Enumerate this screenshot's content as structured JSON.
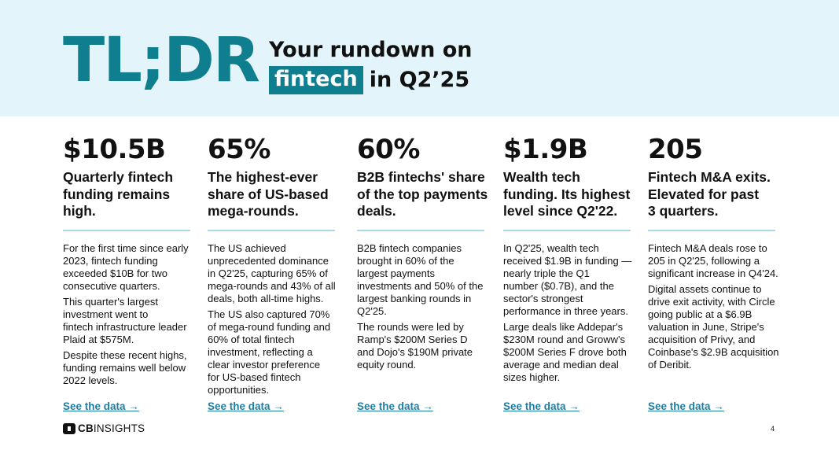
{
  "header": {
    "tldr": "TL;DR",
    "line1": "Your rundown on",
    "highlight": "fintech",
    "line2_rest": "in Q2’25"
  },
  "columns": [
    {
      "stat": "$10.5B",
      "subhead": [
        "Quarterly fintech",
        "funding remains",
        "high."
      ],
      "paragraphs": [
        [
          "For the first time since early",
          "2023, fintech funding",
          "exceeded $10B for two",
          "consecutive quarters."
        ],
        [
          "This quarter's largest",
          "investment went to",
          "fintech infrastructure leader",
          "Plaid at $575M."
        ],
        [
          "Despite these recent highs,",
          "funding remains well below",
          "2022 levels."
        ]
      ],
      "link": "See the data →"
    },
    {
      "stat": "65%",
      "subhead": [
        "The highest-ever",
        "share of US-based",
        "mega-rounds."
      ],
      "paragraphs": [
        [
          "The US achieved",
          "unprecedented dominance",
          "in Q2'25, capturing 65% of",
          "mega-rounds and 43% of all",
          "deals, both all-time highs."
        ],
        [
          "The US also captured 70%",
          "of mega-round funding and",
          "60% of total fintech",
          "investment, reflecting a",
          "clear investor preference",
          "for US-based fintech",
          "opportunities."
        ]
      ],
      "link": "See the data →"
    },
    {
      "stat": "60%",
      "subhead": [
        "B2B fintechs' share",
        "of the top payments",
        "deals."
      ],
      "paragraphs": [
        [
          "B2B fintech companies",
          "brought in 60% of the",
          "largest payments",
          "investments and 50% of the",
          "largest banking rounds in",
          "Q2'25."
        ],
        [
          "The rounds were led by",
          "Ramp's $200M Series D",
          "and Dojo's $190M private",
          "equity round."
        ]
      ],
      "link": "See the data →"
    },
    {
      "stat": "$1.9B",
      "subhead": [
        "Wealth tech",
        "funding. Its highest",
        "level since Q2'22."
      ],
      "paragraphs": [
        [
          "In Q2'25, wealth tech",
          "received $1.9B in funding —",
          "nearly triple the Q1",
          "number ($0.7B), and the",
          "sector's strongest",
          "performance in three years."
        ],
        [
          "Large deals like Addepar's",
          "$230M round and Groww's",
          "$200M Series F drove both",
          "average and median deal",
          "sizes higher."
        ]
      ],
      "link": "See the data →"
    },
    {
      "stat": "205",
      "subhead": [
        "Fintech M&A exits.",
        "Elevated for past",
        "3 quarters."
      ],
      "paragraphs": [
        [
          "Fintech M&A deals rose to",
          "205 in Q2'25, following a",
          "significant increase in Q4'24."
        ],
        [
          "Digital assets continue to",
          "drive exit activity, with Circle",
          "going public at a $6.9B",
          "valuation in June, Stripe's",
          "acquisition of Privy, and",
          "Coinbase's $2.9B acquisition",
          "of Deribit."
        ]
      ],
      "link": "See the data →"
    }
  ],
  "footer": {
    "logo_cb": "CB",
    "logo_insights": "INSIGHTS",
    "page_number": "4"
  },
  "colors": {
    "accent": "#0f7f8f",
    "header_bg": "#e3f4fa",
    "rule": "#a9d9e6",
    "link": "#1f7fa3"
  }
}
